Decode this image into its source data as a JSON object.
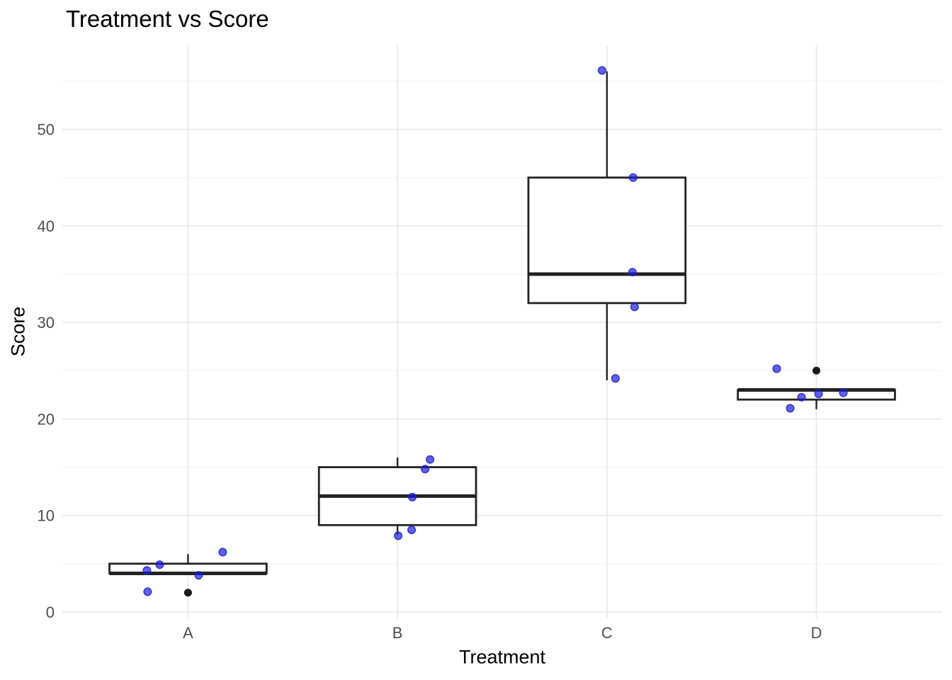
{
  "chart_data": {
    "type": "boxplot",
    "title": "Treatment vs Score",
    "xlabel": "Treatment",
    "ylabel": "Score",
    "categories": [
      "A",
      "B",
      "C",
      "D"
    ],
    "yticks": [
      0,
      10,
      20,
      30,
      40,
      50
    ],
    "yticks_minor": [
      5,
      15,
      25,
      35,
      45,
      55
    ],
    "ylim": [
      -0.7,
      58.7
    ],
    "grid": "major-and-minor, no axis lines, no tick marks (minimal theme)",
    "legend_position": "none",
    "groups": [
      {
        "category": "A",
        "values": [
          2,
          4,
          4,
          5,
          6
        ],
        "q1": 4,
        "median": 4,
        "q3": 5,
        "whisker_low": 4,
        "whisker_high": 6,
        "outliers": [
          2
        ],
        "points": [
          [
            -40,
            4.9
          ],
          [
            -58,
            4.3
          ],
          [
            49,
            6.2
          ],
          [
            15,
            3.8
          ],
          [
            -57,
            2.1
          ]
        ]
      },
      {
        "category": "B",
        "values": [
          8,
          9,
          12,
          15,
          16
        ],
        "q1": 9,
        "median": 12,
        "q3": 15,
        "whisker_low": 8,
        "whisker_high": 16,
        "outliers": [],
        "points": [
          [
            46,
            15.8
          ],
          [
            39,
            14.8
          ],
          [
            21,
            11.9
          ],
          [
            20,
            8.5
          ],
          [
            1,
            7.9
          ]
        ]
      },
      {
        "category": "C",
        "values": [
          24,
          32,
          35,
          45,
          56
        ],
        "q1": 32,
        "median": 35,
        "q3": 45,
        "whisker_low": 24,
        "whisker_high": 56,
        "outliers": [],
        "points": [
          [
            -7,
            56.1
          ],
          [
            37,
            45.0
          ],
          [
            36,
            35.2
          ],
          [
            39,
            31.6
          ],
          [
            12,
            24.2
          ]
        ]
      },
      {
        "category": "D",
        "values": [
          21,
          22,
          23,
          23,
          25
        ],
        "q1": 22,
        "median": 23,
        "q3": 23,
        "whisker_low": 21,
        "whisker_high": 23,
        "outliers": [
          25
        ],
        "points": [
          [
            -56,
            25.2
          ],
          [
            38,
            22.7
          ],
          [
            3,
            22.6
          ],
          [
            -21,
            22.25
          ],
          [
            -37,
            21.1
          ]
        ]
      }
    ],
    "colors": {
      "jitter_fill": "#1515E0",
      "jitter_alpha": 0.68,
      "jitter_stroke": "#2222B8",
      "box_stroke": "#222222",
      "box_fill": "#FFFFFF",
      "outlier": "#1A1A1A",
      "grid_major": "#E8E8E8",
      "grid_minor": "#F3F3F3",
      "tick_label": "#4D4D4D",
      "axis_title": "#000000",
      "background": "#FFFFFF"
    }
  }
}
